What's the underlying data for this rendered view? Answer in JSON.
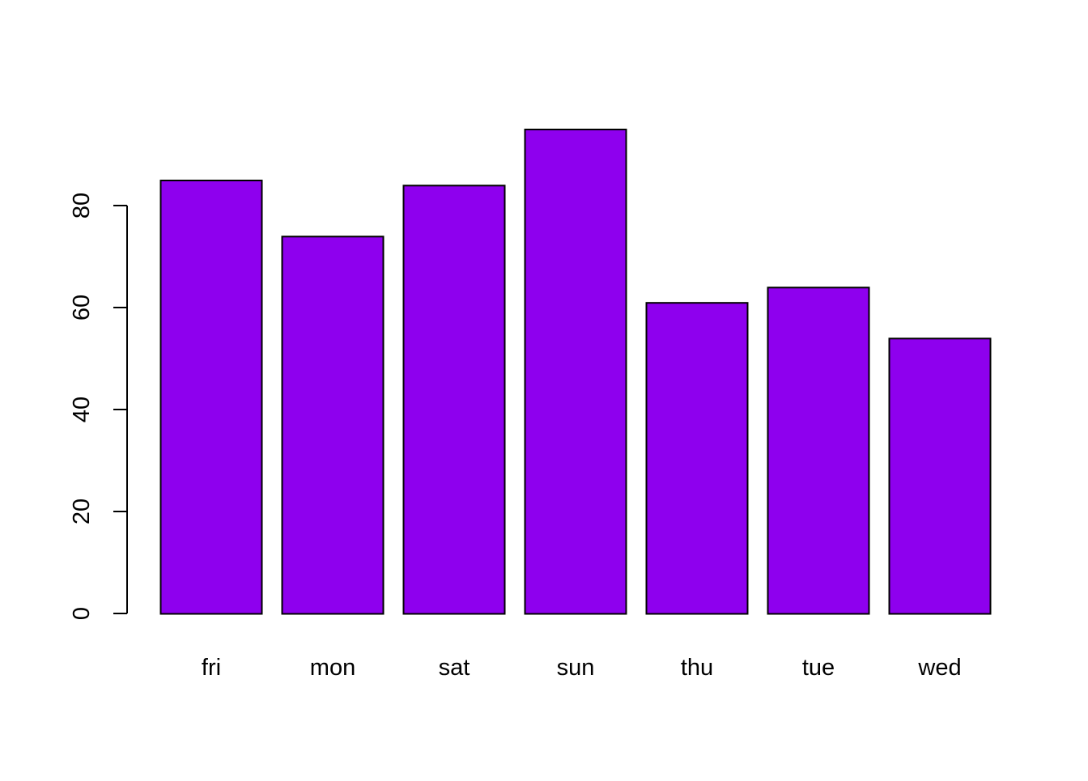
{
  "chart_data": {
    "type": "bar",
    "title": "",
    "xlabel": "",
    "ylabel": "",
    "categories": [
      "fri",
      "mon",
      "sat",
      "sun",
      "thu",
      "tue",
      "wed"
    ],
    "values": [
      85,
      74,
      84,
      95,
      61,
      64,
      54
    ],
    "ylim": [
      0,
      100
    ],
    "y_ticks": [
      0,
      20,
      40,
      60,
      80
    ],
    "y_tick_labels": [
      "0",
      "20",
      "40",
      "60",
      "80"
    ],
    "grid": false,
    "legend": "none",
    "bar_color": "#8E00EE",
    "bar_border_color": "#000000"
  }
}
